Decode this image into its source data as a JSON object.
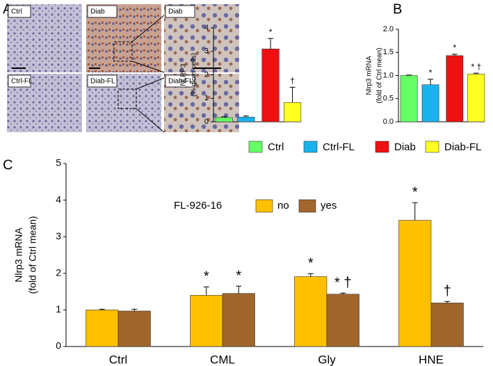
{
  "panel_labels": [
    "A",
    "B",
    "C"
  ],
  "micrographs": [
    "Ctrl",
    "Ctrl-FL",
    "Diab",
    "Diab-FL",
    "Diab",
    "Diab-FL"
  ],
  "chart_data": [
    {
      "type": "bar",
      "ylabel": [
        "NLRP3",
        "(% glom cells)"
      ],
      "categories": [
        "Ctrl",
        "Ctrl-FL",
        "Diab",
        "Diab-FL"
      ],
      "colors": [
        "#66ff66",
        "#19b2ee",
        "#ee1111",
        "#ffff22"
      ],
      "values": [
        0.18,
        0.2,
        3.1,
        0.82
      ],
      "errors": [
        0.03,
        0.05,
        0.45,
        0.65
      ],
      "annotations": [
        null,
        null,
        "*",
        "†"
      ],
      "ylim": [
        0,
        4
      ],
      "yticks": [
        0,
        1,
        2,
        3,
        4
      ]
    },
    {
      "type": "bar",
      "ylabel": [
        "Nlrp3 mRNA",
        "(fold of Ctrl mean)"
      ],
      "colors": [
        "#66ff66",
        "#19b2ee",
        "#ee1111",
        "#ffff22"
      ],
      "values": [
        1.0,
        0.8,
        1.43,
        1.03
      ],
      "errors": [
        0.01,
        0.12,
        0.03,
        0.02
      ],
      "annotations": [
        null,
        "*",
        "*",
        "* †"
      ],
      "ylim": [
        0,
        2
      ],
      "yticks": [
        {
          "value": 0,
          "label": "0.0"
        },
        {
          "value": 0.5,
          "label": "0.5"
        },
        {
          "value": 1,
          "label": "1.0"
        },
        {
          "value": 1.5,
          "label": "1.5"
        },
        {
          "value": 2,
          "label": "2.0"
        }
      ]
    },
    {
      "type": "grouped_bar",
      "ylabel": [
        "Nlrp3 mRNA",
        "(fold of Ctrl mean)"
      ],
      "legend_title": "FL-926-16",
      "categories": [
        "Ctrl",
        "CML",
        "Gly",
        "HNE"
      ],
      "series": [
        {
          "name": "no",
          "color": "#ffc000",
          "values": [
            1.0,
            1.4,
            1.91,
            3.45
          ],
          "errors": [
            0.02,
            0.23,
            0.08,
            0.48
          ],
          "annotations": [
            null,
            "*",
            "*",
            "*"
          ]
        },
        {
          "name": "yes",
          "color": "#a0662c",
          "values": [
            0.97,
            1.45,
            1.43,
            1.19
          ],
          "errors": [
            0.05,
            0.2,
            0.03,
            0.04
          ],
          "annotations": [
            null,
            "*",
            "* †",
            "†"
          ]
        }
      ],
      "ylim": [
        0,
        5
      ],
      "yticks": [
        0,
        1,
        2,
        3,
        4,
        5
      ]
    }
  ]
}
